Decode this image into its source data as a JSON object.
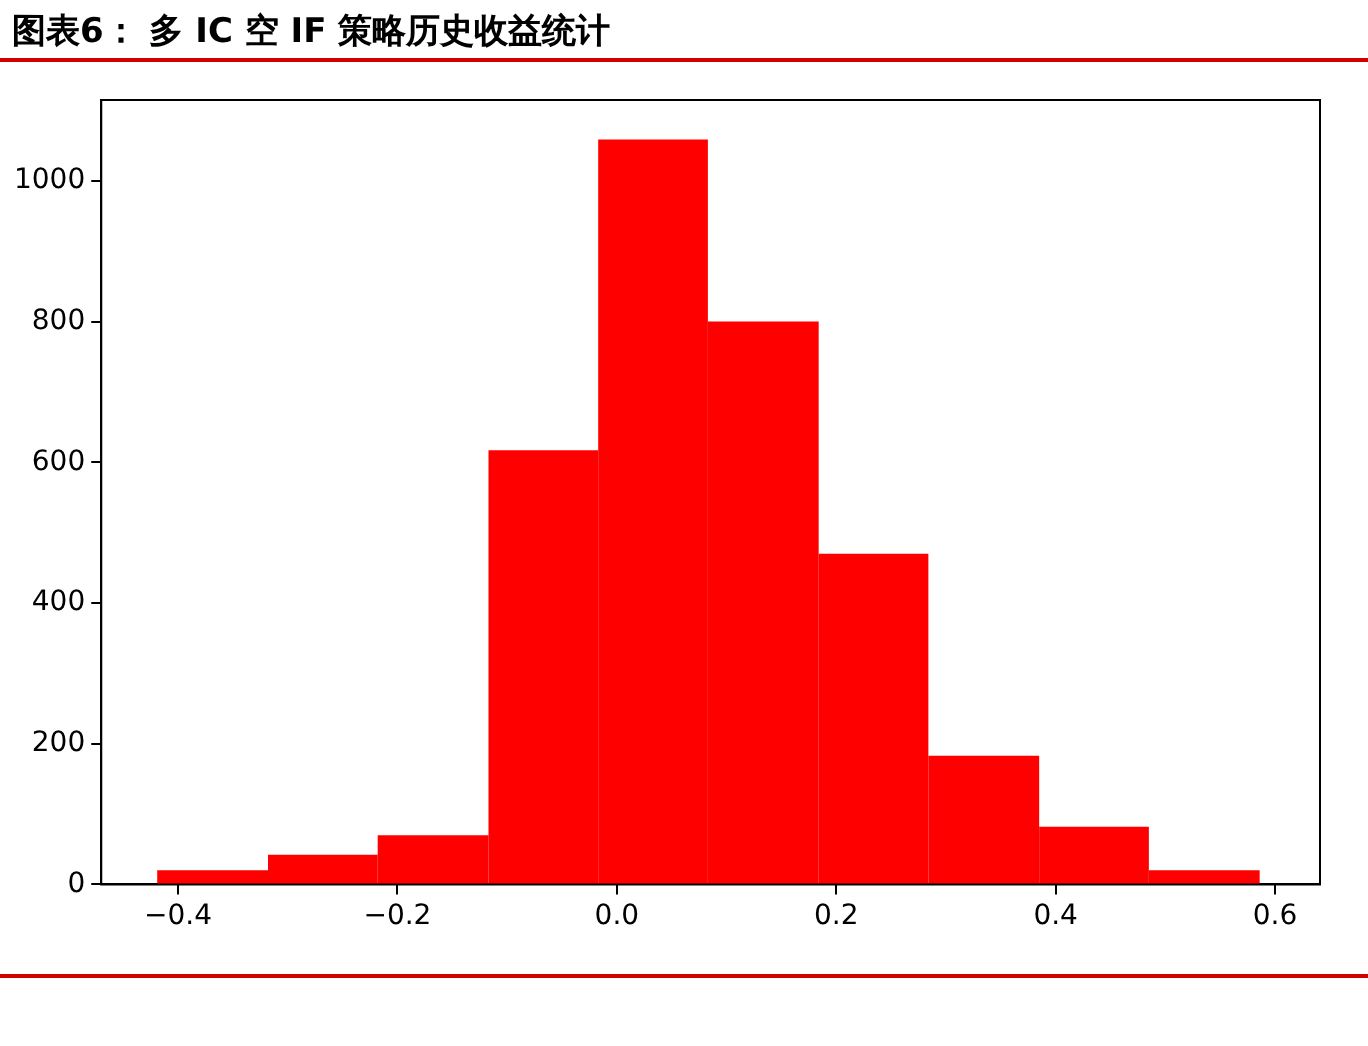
{
  "chart_data": {
    "type": "histogram",
    "title": "图表6： 多 IC 空 IF 策略历史收益统计",
    "bins": [
      -0.419,
      -0.318,
      -0.218,
      -0.117,
      -0.017,
      0.083,
      0.184,
      0.284,
      0.385,
      0.485,
      0.586
    ],
    "values": [
      20,
      42,
      70,
      617,
      1059,
      800,
      470,
      183,
      82,
      20
    ],
    "color": "#ff0000",
    "xlim": [
      -0.47,
      0.641
    ],
    "xticks": [
      {
        "value": -0.4,
        "label": "−0.4"
      },
      {
        "value": -0.2,
        "label": "−0.2"
      },
      {
        "value": 0,
        "label": "0.0"
      },
      0.2,
      0.4,
      0.6
    ],
    "ylim": [
      0,
      1115
    ],
    "yticks": [
      0,
      200,
      400,
      600,
      800,
      1000
    ],
    "grid": false
  }
}
